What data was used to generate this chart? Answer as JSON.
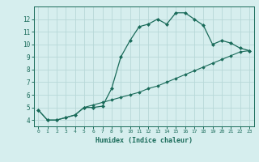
{
  "title": "",
  "xlabel": "Humidex (Indice chaleur)",
  "ylabel": "",
  "bg_color": "#d6eeee",
  "line_color": "#1a6b5a",
  "grid_color": "#b8d8d8",
  "xlim": [
    -0.5,
    23.5
  ],
  "ylim": [
    3.5,
    13.0
  ],
  "yticks": [
    4,
    5,
    6,
    7,
    8,
    9,
    10,
    11,
    12
  ],
  "xticks": [
    0,
    1,
    2,
    3,
    4,
    5,
    6,
    7,
    8,
    9,
    10,
    11,
    12,
    13,
    14,
    15,
    16,
    17,
    18,
    19,
    20,
    21,
    22,
    23
  ],
  "curve1_x": [
    0,
    1,
    2,
    3,
    4,
    5,
    6,
    7,
    8,
    9,
    10,
    11,
    12,
    13,
    14,
    15,
    16,
    17,
    18,
    19,
    20,
    21,
    22,
    23
  ],
  "curve1_y": [
    4.8,
    4.0,
    4.0,
    4.2,
    4.4,
    5.0,
    5.0,
    5.1,
    6.5,
    9.0,
    10.3,
    11.4,
    11.6,
    12.0,
    11.6,
    12.5,
    12.5,
    12.0,
    11.5,
    10.0,
    10.3,
    10.1,
    9.7,
    9.5
  ],
  "curve2_x": [
    0,
    1,
    2,
    3,
    4,
    5,
    6,
    7,
    8,
    9,
    10,
    11,
    12,
    13,
    14,
    15,
    16,
    17,
    18,
    19,
    20,
    21,
    22,
    23
  ],
  "curve2_y": [
    4.8,
    4.0,
    4.0,
    4.2,
    4.4,
    5.0,
    5.2,
    5.4,
    5.6,
    5.8,
    6.0,
    6.2,
    6.5,
    6.7,
    7.0,
    7.3,
    7.6,
    7.9,
    8.2,
    8.5,
    8.8,
    9.1,
    9.4,
    9.5
  ]
}
